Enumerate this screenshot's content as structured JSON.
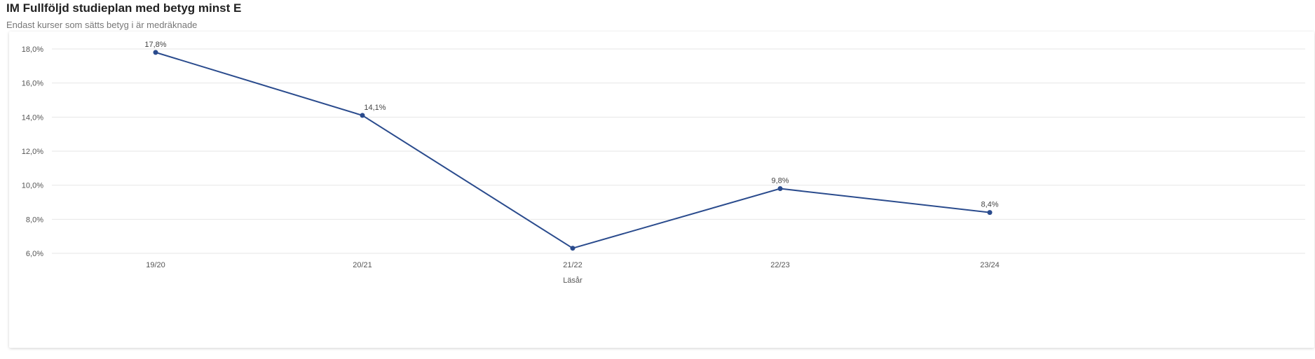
{
  "chart_data": {
    "type": "line",
    "title": "IM Fullföljd studieplan med betyg minst E",
    "subtitle": "Endast kurser som sätts betyg i är medräknade",
    "xlabel": "Läsår",
    "ylabel": "",
    "categories": [
      "19/20",
      "20/21",
      "21/22",
      "22/23",
      "23/24"
    ],
    "series": [
      {
        "name": "",
        "values": [
          17.8,
          14.1,
          6.3,
          9.8,
          8.4
        ],
        "labels": [
          "17,8%",
          "14,1%",
          "",
          "9,8%",
          "8,4%"
        ]
      }
    ],
    "ylim": [
      6,
      18
    ],
    "yticks": [
      6,
      8,
      10,
      12,
      14,
      16,
      18
    ],
    "ytick_labels": [
      "6,0%",
      "8,0%",
      "10,0%",
      "12,0%",
      "14,0%",
      "16,0%",
      "18,0%"
    ],
    "grid": true,
    "legend": "none",
    "line_color": "#2a4b8d"
  }
}
